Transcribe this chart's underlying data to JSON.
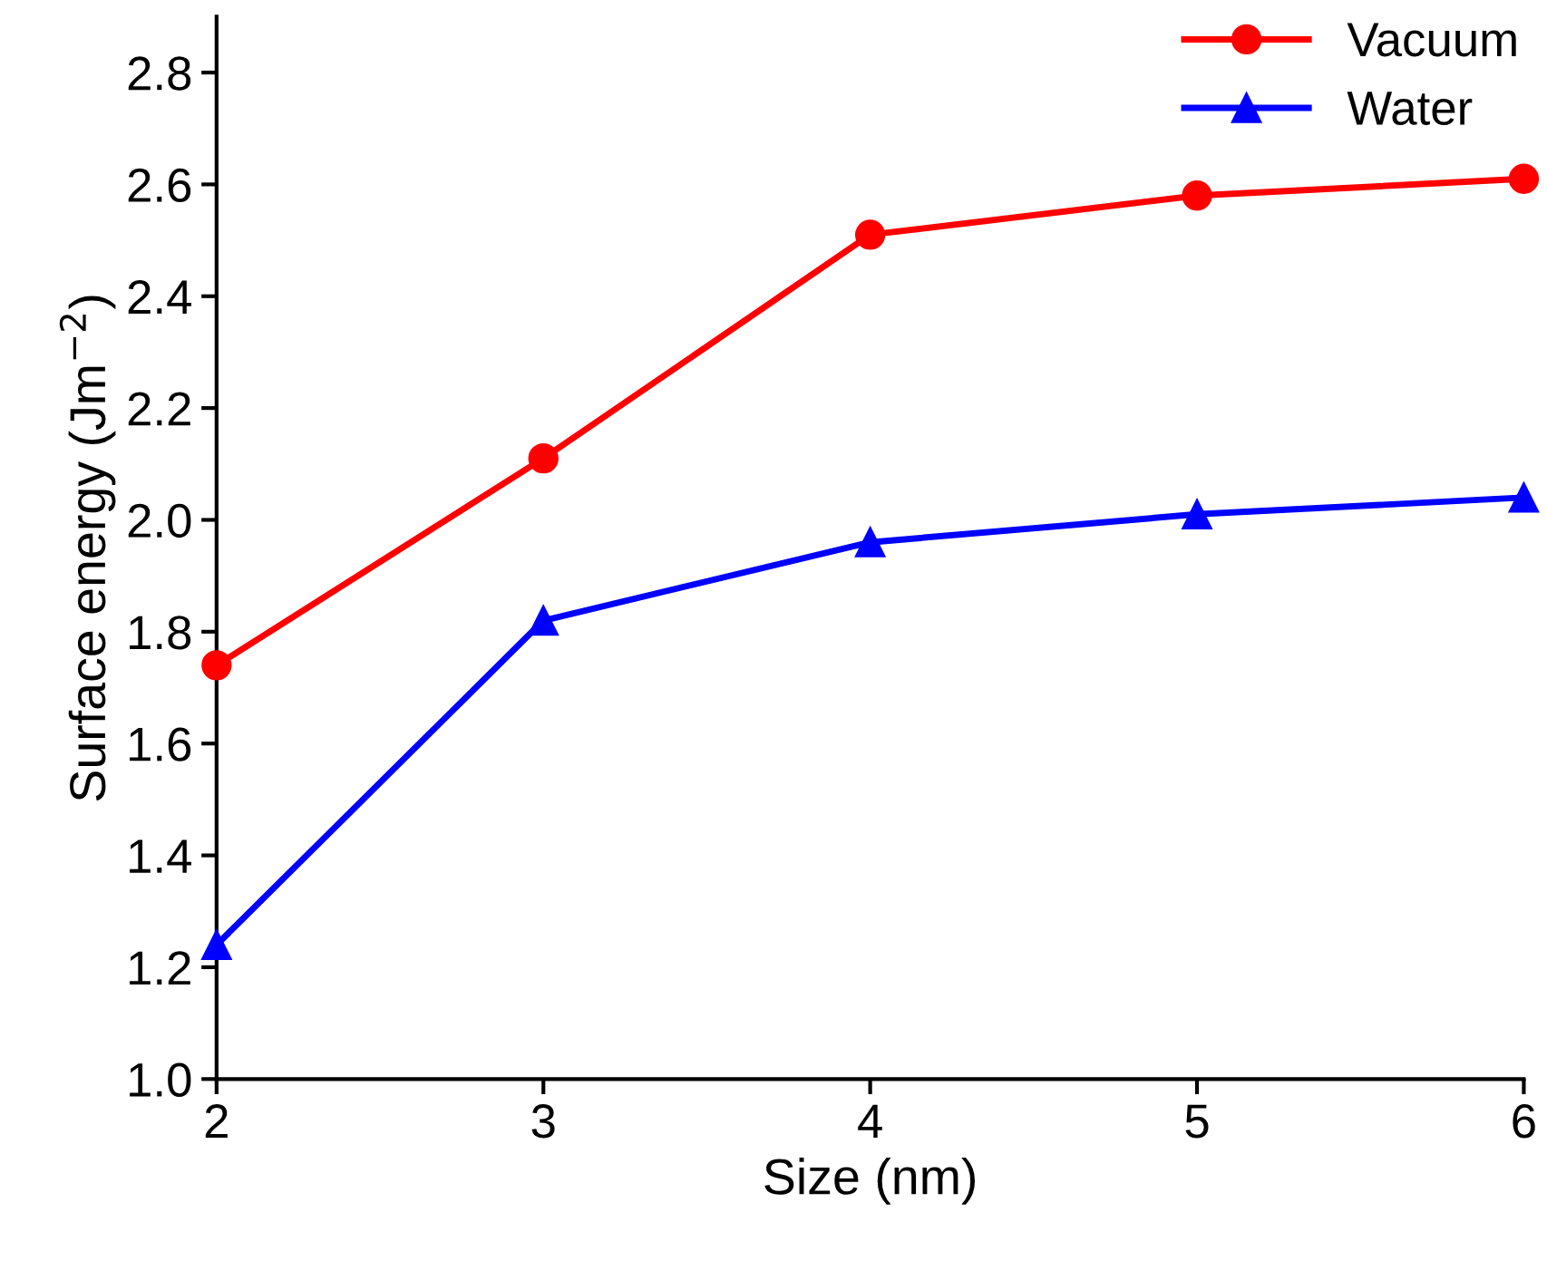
{
  "chart_data": {
    "type": "line",
    "xlabel": "Size (nm)",
    "ylabel": "Surface energy (Jm$^{−2}$)",
    "x": [
      2,
      3,
      4,
      5,
      6
    ],
    "series": [
      {
        "name": "Vacuum",
        "color": "#ff0000",
        "marker": "circle",
        "values": [
          1.74,
          2.11,
          2.51,
          2.58,
          2.61
        ]
      },
      {
        "name": "Water",
        "color": "#0000ff",
        "marker": "triangle",
        "values": [
          1.24,
          1.82,
          1.96,
          2.01,
          2.04
        ]
      }
    ],
    "xlim": [
      2,
      6
    ],
    "xticks": [
      2,
      3,
      4,
      5,
      6
    ],
    "ylim": [
      1.0,
      2.9
    ],
    "yticks": [
      {
        "value": 1.0,
        "label": "1.0"
      },
      1.2,
      1.4,
      1.6,
      1.8,
      {
        "value": 2.0,
        "label": "2.0"
      },
      2.2,
      2.4,
      2.6,
      2.8
    ],
    "grid": false,
    "legend": "top right",
    "line_style": "solid"
  }
}
